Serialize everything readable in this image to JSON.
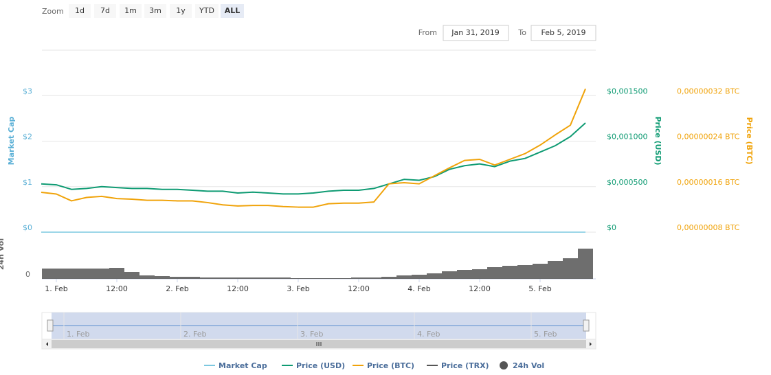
{
  "range_selector": {
    "label": "Zoom",
    "buttons": [
      "1d",
      "7d",
      "1m",
      "3m",
      "1y",
      "YTD",
      "ALL"
    ],
    "selected": 6
  },
  "date_range": {
    "from_label": "From",
    "from": "Jan 31, 2019",
    "to_label": "To",
    "to": "Feb 5, 2019"
  },
  "chart_data": [
    {
      "type": "line",
      "categories": [
        null,
        "1. Feb",
        null,
        null,
        null,
        "12:00",
        null,
        null,
        null,
        "2. Feb",
        null,
        null,
        null,
        "12:00",
        null,
        null,
        null,
        "3. Feb",
        null,
        null,
        null,
        "12:00",
        null,
        null,
        null,
        "4. Feb",
        null,
        null,
        null,
        "12:00",
        null,
        null,
        null,
        "5. Feb",
        null,
        null,
        null
      ],
      "ylabel": "Market Cap",
      "y2label": "Price (USD)",
      "y3label": "Price (BTC)",
      "ylim": [
        0,
        4
      ],
      "yticks": [
        {
          "value": 0,
          "label": "$0"
        },
        {
          "value": 1,
          "label": "$1"
        },
        {
          "value": 2,
          "label": "$2"
        },
        {
          "value": 3,
          "label": "$3"
        }
      ],
      "y2lim": [
        0,
        0.002
      ],
      "y2ticks": [
        {
          "value": 0,
          "label": "$0"
        },
        {
          "value": 0.0005,
          "label": "$0,000500"
        },
        {
          "value": 0.001,
          "label": "$0,001000"
        },
        {
          "value": 0.0015,
          "label": "$0,001500"
        }
      ],
      "y3lim": [
        8e-08,
        4e-07
      ],
      "y3ticks": [
        {
          "value": 8e-08,
          "label": "0,00000008 BTC"
        },
        {
          "value": 1.6e-07,
          "label": "0,00000016 BTC"
        },
        {
          "value": 2.4e-07,
          "label": "0,00000024 BTC"
        },
        {
          "value": 3.2e-07,
          "label": "0,00000032 BTC"
        }
      ],
      "grid": true,
      "series": [
        {
          "name": "Market Cap",
          "color": "#7cc8e0",
          "axis": "y",
          "values": [
            0,
            0,
            0,
            0,
            0,
            0,
            0,
            0,
            0,
            0,
            0,
            0,
            0,
            0,
            0,
            0,
            0,
            0,
            0,
            0,
            0,
            0,
            0,
            0,
            0,
            0,
            0,
            0,
            0,
            0,
            0,
            0,
            0,
            0,
            0,
            0,
            0
          ]
        },
        {
          "name": "Price (USD)",
          "color": "#0f9b73",
          "axis": "y2",
          "values": [
            0.00053,
            0.00052,
            0.00047,
            0.00048,
            0.0005,
            0.00049,
            0.00048,
            0.00048,
            0.00047,
            0.00047,
            0.00046,
            0.00045,
            0.00045,
            0.00043,
            0.00044,
            0.00043,
            0.00042,
            0.00042,
            0.00043,
            0.00045,
            0.00046,
            0.00046,
            0.00048,
            0.00053,
            0.00058,
            0.00057,
            0.00061,
            0.00069,
            0.00073,
            0.00075,
            0.00072,
            0.00078,
            0.00081,
            0.00088,
            0.00095,
            0.00105,
            0.0012
          ]
        },
        {
          "name": "Price (BTC)",
          "color": "#f0a30a",
          "axis": "y3",
          "values": [
            1.5e-07,
            1.47e-07,
            1.35e-07,
            1.41e-07,
            1.43e-07,
            1.39e-07,
            1.38e-07,
            1.36e-07,
            1.36e-07,
            1.35e-07,
            1.35e-07,
            1.32e-07,
            1.28e-07,
            1.26e-07,
            1.27e-07,
            1.27e-07,
            1.25e-07,
            1.24e-07,
            1.24e-07,
            1.3e-07,
            1.31e-07,
            1.31e-07,
            1.33e-07,
            1.65e-07,
            1.67e-07,
            1.65e-07,
            1.79e-07,
            1.93e-07,
            2.06e-07,
            2.08e-07,
            1.98e-07,
            2.08e-07,
            2.18e-07,
            2.33e-07,
            2.51e-07,
            2.68e-07,
            3.32e-07
          ]
        },
        {
          "name": "Price (TRX)",
          "color": "#555555",
          "axis": "y",
          "values": [
            null,
            null,
            null,
            null,
            null,
            null,
            null,
            null,
            null,
            null,
            null,
            null,
            null,
            null,
            null,
            null,
            null,
            null,
            null,
            null,
            null,
            null,
            null,
            null,
            null,
            null,
            null,
            null,
            null,
            null,
            null,
            null,
            null,
            null,
            null,
            null,
            null
          ]
        }
      ]
    },
    {
      "type": "bar",
      "name": "24h Vol",
      "ylabel": "24h Vol",
      "color": "#555555",
      "ylim": [
        0,
        66
      ],
      "yticks": [
        0
      ],
      "values": [
        15,
        15,
        15,
        15,
        15,
        16,
        10,
        5,
        4,
        3,
        3,
        2,
        2,
        2,
        2,
        2,
        2,
        1,
        1,
        1,
        1,
        2,
        2,
        3,
        5,
        6,
        8,
        11,
        13,
        14,
        17,
        19,
        20,
        22,
        26,
        30,
        44
      ]
    }
  ]
}
